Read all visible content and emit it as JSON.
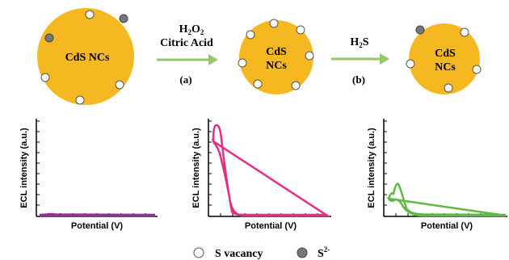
{
  "colors": {
    "nanocrystal_fill": "#F5B820",
    "arrow": "#92C86A",
    "vacancy_fill": "#FFFFFF",
    "sulfide_fill": "#777777",
    "curve_a": "#9B2D8E",
    "curve_b": "#E52E84",
    "curve_c": "#62B846"
  },
  "scheme": {
    "nc_left_label": "CdS NCs",
    "nc_middle_label_line1": "CdS",
    "nc_middle_label_line2": "NCs",
    "nc_right_label_line1": "CdS",
    "nc_right_label_line2": "NCs",
    "arrow_a": {
      "reagent_line1_prefix": "H",
      "reagent_line1_sub1": "2",
      "reagent_line1_mid": "O",
      "reagent_line1_sub2": "2",
      "reagent_line2": "Citric Acid",
      "step_label": "(a)"
    },
    "arrow_b": {
      "reagent_prefix": "H",
      "reagent_sub": "2",
      "reagent_suffix": "S",
      "step_label": "(b)"
    }
  },
  "plots": [
    {
      "ylabel": "ECL intensity (a.u.)",
      "xlabel": "Potential (V)",
      "curve": "flat"
    },
    {
      "ylabel": "ECL intensity (a.u.)",
      "xlabel": "Potential (V)",
      "curve": "tall-peak"
    },
    {
      "ylabel": "ECL intensity (a.u.)",
      "xlabel": "Potential (V)",
      "curve": "small-peak"
    }
  ],
  "legend": {
    "vacancy_label": "S vacancy",
    "sulfide_base": "S",
    "sulfide_sup": "2-"
  }
}
